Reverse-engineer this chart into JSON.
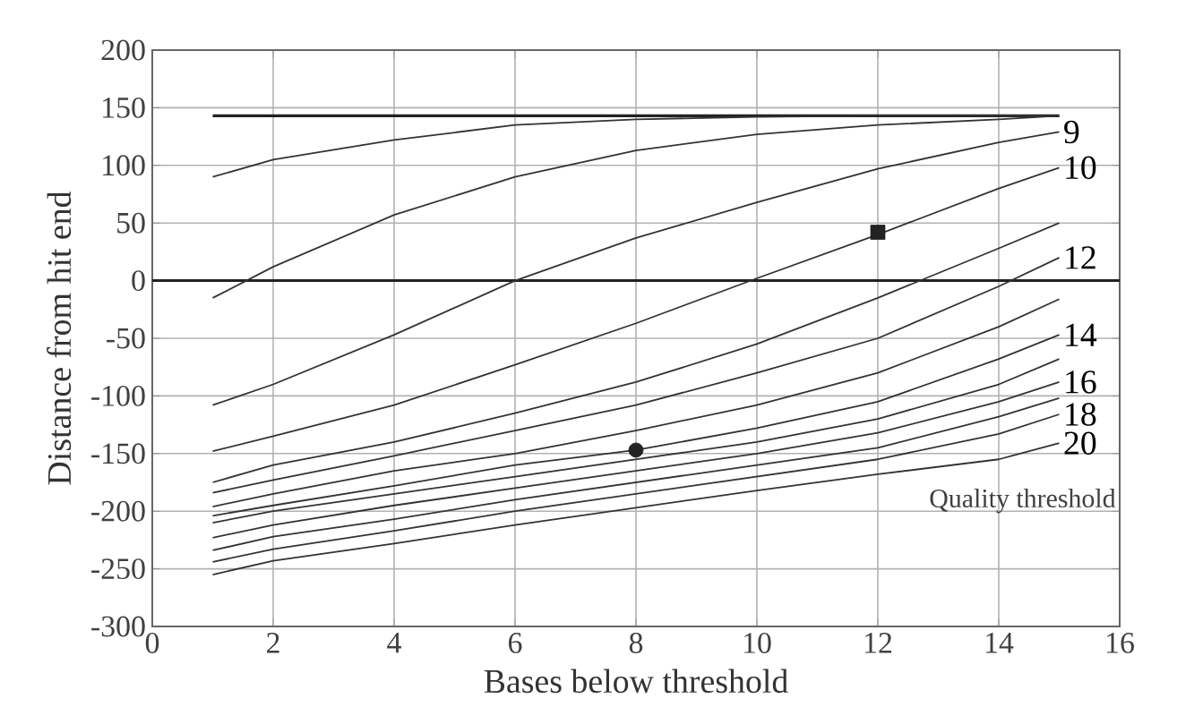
{
  "chart_data": {
    "type": "line",
    "xlabel": "Bases below threshold",
    "ylabel": "Distance from hit end",
    "xlim": [
      0,
      16
    ],
    "ylim": [
      -300,
      200
    ],
    "xticks": [
      0,
      2,
      4,
      6,
      8,
      10,
      12,
      14,
      16
    ],
    "yticks": [
      -300,
      -250,
      -200,
      -150,
      -100,
      -50,
      0,
      50,
      100,
      150,
      200
    ],
    "grid": true,
    "marker": "none",
    "x": [
      1,
      2,
      4,
      6,
      8,
      10,
      12,
      14,
      15
    ],
    "series": [
      {
        "color": "#222222",
        "values": [
          143,
          143,
          143,
          143,
          143,
          143,
          143,
          143,
          143
        ]
      },
      {
        "color": "#333333",
        "values": [
          90,
          105,
          122,
          135,
          140,
          142,
          143,
          143,
          143
        ]
      },
      {
        "color": "#333333",
        "values": [
          -15,
          12,
          57,
          90,
          113,
          127,
          135,
          140,
          143
        ]
      },
      {
        "name": "9",
        "color": "#333333",
        "values": [
          -108,
          -90,
          -47,
          0,
          37,
          68,
          97,
          120,
          129
        ]
      },
      {
        "name": "10",
        "color": "#333333",
        "values": [
          -148,
          -135,
          -108,
          -73,
          -37,
          2,
          40,
          80,
          98
        ]
      },
      {
        "color": "#333333",
        "values": [
          -175,
          -160,
          -140,
          -115,
          -88,
          -55,
          -15,
          28,
          50
        ]
      },
      {
        "name": "12",
        "color": "#333333",
        "values": [
          -184,
          -173,
          -152,
          -130,
          -108,
          -80,
          -50,
          -5,
          20
        ]
      },
      {
        "color": "#333333",
        "values": [
          -196,
          -185,
          -165,
          -150,
          -130,
          -108,
          -80,
          -40,
          -16
        ]
      },
      {
        "name": "14",
        "color": "#333333",
        "values": [
          -204,
          -195,
          -178,
          -160,
          -147,
          -128,
          -105,
          -68,
          -47
        ]
      },
      {
        "color": "#333333",
        "values": [
          -210,
          -200,
          -185,
          -170,
          -155,
          -140,
          -120,
          -90,
          -68
        ]
      },
      {
        "name": "16",
        "color": "#333333",
        "values": [
          -223,
          -212,
          -195,
          -180,
          -165,
          -150,
          -132,
          -105,
          -88
        ]
      },
      {
        "color": "#333333",
        "values": [
          -234,
          -222,
          -207,
          -190,
          -175,
          -160,
          -145,
          -118,
          -102
        ]
      },
      {
        "name": "18",
        "color": "#333333",
        "values": [
          -244,
          -233,
          -217,
          -200,
          -185,
          -170,
          -155,
          -133,
          -116
        ]
      },
      {
        "name": "20",
        "color": "#333333",
        "values": [
          -255,
          -243,
          -228,
          -212,
          -197,
          -182,
          -168,
          -155,
          -141
        ]
      },
      {
        "type": "scatter",
        "marker": "square",
        "color": "#222222",
        "x": [
          12
        ],
        "values": [
          42
        ]
      },
      {
        "type": "scatter",
        "marker": "circle",
        "color": "#222222",
        "x": [
          8
        ],
        "values": [
          -147
        ]
      }
    ],
    "ref_lines": [
      {
        "axis": "y",
        "value": 0,
        "color": "#222222"
      }
    ],
    "annotations": [
      "Quality threshold"
    ]
  }
}
